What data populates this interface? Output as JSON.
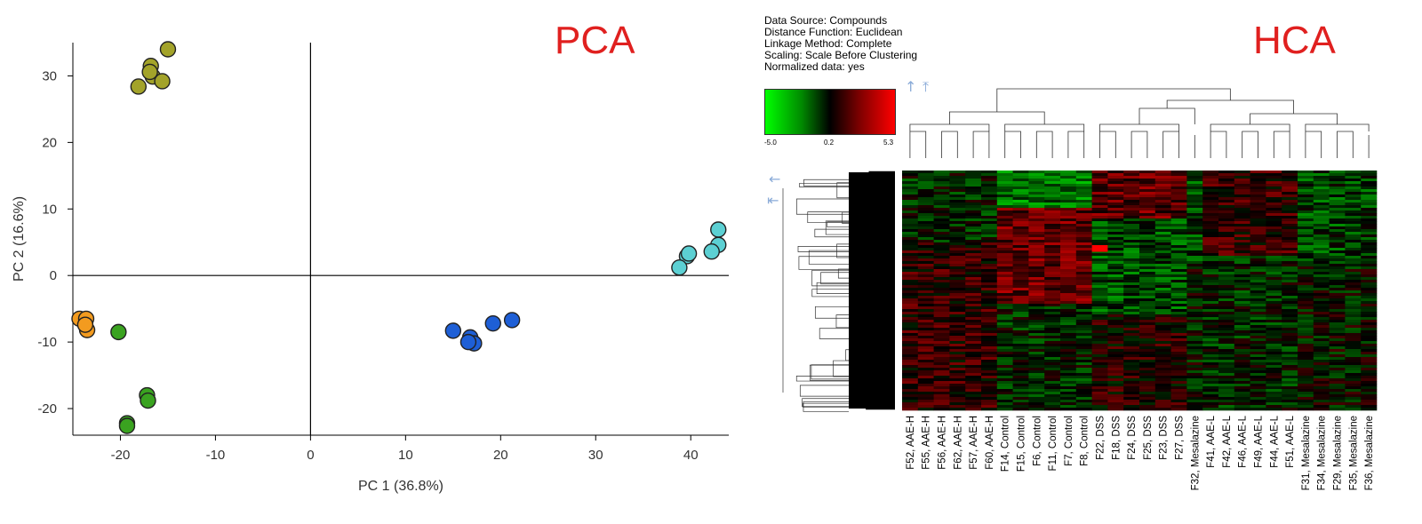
{
  "pca": {
    "title": "PCA",
    "chart_data": {
      "type": "scatter",
      "xlabel": "PC 1 (36.8%)",
      "ylabel": "PC 2 (16.6%)",
      "xlim": [
        -25,
        44
      ],
      "ylim": [
        -24,
        35
      ],
      "xticks": [
        -20,
        -10,
        0,
        10,
        20,
        30,
        40
      ],
      "yticks": [
        -20,
        -10,
        0,
        10,
        20,
        30
      ],
      "grid": false,
      "legend": "none",
      "series": [
        {
          "color": "#a3a32a",
          "x": [
            -15,
            -16.8,
            -16.6,
            -15.6,
            -18.1,
            -16.9
          ],
          "y": [
            34,
            31.5,
            29.9,
            29.2,
            28.4,
            30.6
          ]
        },
        {
          "color": "#f39b1f",
          "x": [
            -24.3,
            -23.6,
            -23.5,
            -23.7
          ],
          "y": [
            -6.5,
            -6.5,
            -8.2,
            -7.4
          ]
        },
        {
          "color": "#3aa320",
          "x": [
            -20.2,
            -17.2,
            -17.1,
            -19.3,
            -19.3
          ],
          "y": [
            -8.5,
            -18,
            -18.8,
            -22.2,
            -22.6
          ]
        },
        {
          "color": "#1e5fd6",
          "x": [
            15,
            16.8,
            17.2,
            16.6,
            19.2,
            21.2
          ],
          "y": [
            -8.3,
            -9.3,
            -10.2,
            -10,
            -7.2,
            -6.7
          ]
        },
        {
          "color": "#5cd0d3",
          "x": [
            42.9,
            42.9,
            42.2,
            39.6,
            39.8,
            38.8
          ],
          "y": [
            6.9,
            4.6,
            3.6,
            2.9,
            3.3,
            1.2
          ]
        }
      ]
    }
  },
  "hca": {
    "title": "HCA",
    "info": [
      "Data Source: Compounds",
      "Distance Function: Euclidean",
      "Linkage Method: Complete",
      "Scaling: Scale Before Clustering",
      "Normalized data: yes"
    ],
    "legend": {
      "min": "-5.0",
      "mid": "0.2",
      "max": "5.3",
      "colors": [
        "#00ff00",
        "#000000",
        "#ff0000"
      ]
    },
    "icons": [
      "arrow-up-icon",
      "arrow-up-to-top-icon",
      "arrow-left-icon",
      "arrow-left-to-line-icon"
    ],
    "chart_data": {
      "type": "heatmap",
      "samples": [
        "F52, AAE-H",
        "F55, AAE-H",
        "F56, AAE-H",
        "F62, AAE-H",
        "F57, AAE-H",
        "F60, AAE-H",
        "F14, Control",
        "F15, Control",
        "F6, Control",
        "F11, Control",
        "F7, Control",
        "F8, Control",
        "F22, DSS",
        "F18, DSS",
        "F24, DSS",
        "F25, DSS",
        "F23, DSS",
        "F27, DSS",
        "F32, Mesalazine",
        "F41, AAE-L",
        "F42, AAE-L",
        "F46, AAE-L",
        "F49, AAE-L",
        "F44, AAE-L",
        "F51, AAE-L",
        "F31, Mesalazine",
        "F34, Mesalazine",
        "F29, Mesalazine",
        "F35, Mesalazine",
        "F36, Mesalazine"
      ],
      "value_range": [
        -5.0,
        5.3
      ]
    }
  }
}
